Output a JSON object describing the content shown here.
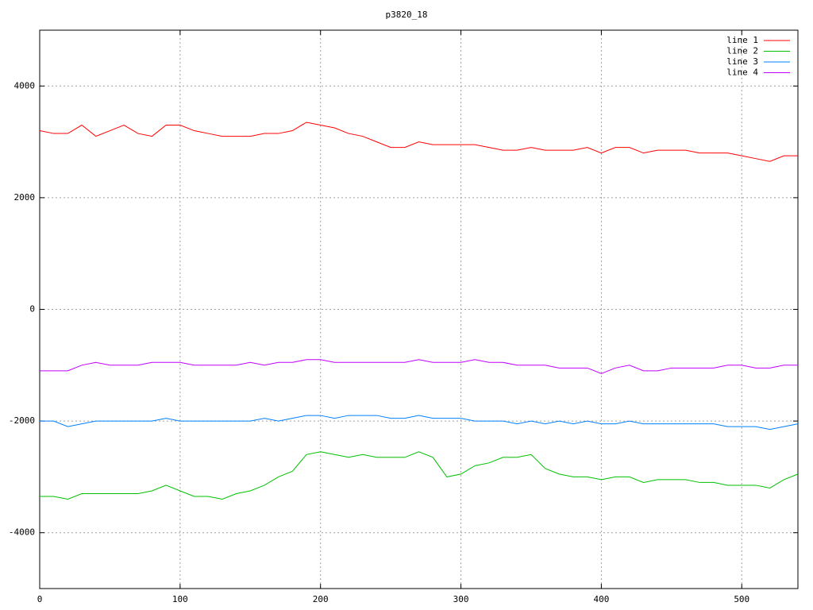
{
  "chart_data": {
    "type": "line",
    "title": "p3820_18",
    "x": [
      0,
      10,
      20,
      30,
      40,
      50,
      60,
      70,
      80,
      90,
      100,
      110,
      120,
      130,
      140,
      150,
      160,
      170,
      180,
      190,
      200,
      210,
      220,
      230,
      240,
      250,
      260,
      270,
      280,
      290,
      300,
      310,
      320,
      330,
      340,
      350,
      360,
      370,
      380,
      390,
      400,
      410,
      420,
      430,
      440,
      450,
      460,
      470,
      480,
      490,
      500,
      510,
      520,
      530,
      540
    ],
    "series": [
      {
        "name": "line 1",
        "color": "#ff0000",
        "values": [
          3200,
          3150,
          3150,
          3300,
          3100,
          3200,
          3300,
          3150,
          3100,
          3300,
          3300,
          3200,
          3150,
          3100,
          3100,
          3100,
          3150,
          3150,
          3200,
          3350,
          3300,
          3250,
          3150,
          3100,
          3000,
          2900,
          2900,
          3000,
          2950,
          2950,
          2950,
          2950,
          2900,
          2850,
          2850,
          2900,
          2850,
          2850,
          2850,
          2900,
          2800,
          2900,
          2900,
          2800,
          2850,
          2850,
          2850,
          2800,
          2800,
          2800,
          2750,
          2700,
          2650,
          2750,
          2750
        ]
      },
      {
        "name": "line 2",
        "color": "#00c000",
        "values": [
          -3350,
          -3350,
          -3400,
          -3300,
          -3300,
          -3300,
          -3300,
          -3300,
          -3250,
          -3150,
          -3250,
          -3350,
          -3350,
          -3400,
          -3300,
          -3250,
          -3150,
          -3000,
          -2900,
          -2600,
          -2550,
          -2600,
          -2650,
          -2600,
          -2650,
          -2650,
          -2650,
          -2550,
          -2650,
          -3000,
          -2950,
          -2800,
          -2750,
          -2650,
          -2650,
          -2600,
          -2850,
          -2950,
          -3000,
          -3000,
          -3050,
          -3000,
          -3000,
          -3100,
          -3050,
          -3050,
          -3050,
          -3100,
          -3100,
          -3150,
          -3150,
          -3150,
          -3200,
          -3050,
          -2950
        ]
      },
      {
        "name": "line 3",
        "color": "#0080ff",
        "values": [
          -2000,
          -2000,
          -2100,
          -2050,
          -2000,
          -2000,
          -2000,
          -2000,
          -2000,
          -1950,
          -2000,
          -2000,
          -2000,
          -2000,
          -2000,
          -2000,
          -1950,
          -2000,
          -1950,
          -1900,
          -1900,
          -1950,
          -1900,
          -1900,
          -1900,
          -1950,
          -1950,
          -1900,
          -1950,
          -1950,
          -1950,
          -2000,
          -2000,
          -2000,
          -2050,
          -2000,
          -2050,
          -2000,
          -2050,
          -2000,
          -2050,
          -2050,
          -2000,
          -2050,
          -2050,
          -2050,
          -2050,
          -2050,
          -2050,
          -2100,
          -2100,
          -2100,
          -2150,
          -2100,
          -2050
        ]
      },
      {
        "name": "line 4",
        "color": "#c000ff",
        "values": [
          -1100,
          -1100,
          -1100,
          -1000,
          -950,
          -1000,
          -1000,
          -1000,
          -950,
          -950,
          -950,
          -1000,
          -1000,
          -1000,
          -1000,
          -950,
          -1000,
          -950,
          -950,
          -900,
          -900,
          -950,
          -950,
          -950,
          -950,
          -950,
          -950,
          -900,
          -950,
          -950,
          -950,
          -900,
          -950,
          -950,
          -1000,
          -1000,
          -1000,
          -1050,
          -1050,
          -1050,
          -1150,
          -1050,
          -1000,
          -1100,
          -1100,
          -1050,
          -1050,
          -1050,
          -1050,
          -1000,
          -1000,
          -1050,
          -1050,
          -1000,
          -1000
        ]
      }
    ],
    "xlim": [
      0,
      540
    ],
    "ylim": [
      -5000,
      5000
    ],
    "xticks": [
      0,
      100,
      200,
      300,
      400,
      500
    ],
    "yticks": [
      -4000,
      -2000,
      0,
      2000,
      4000
    ],
    "grid": true,
    "legend": "top-right"
  }
}
